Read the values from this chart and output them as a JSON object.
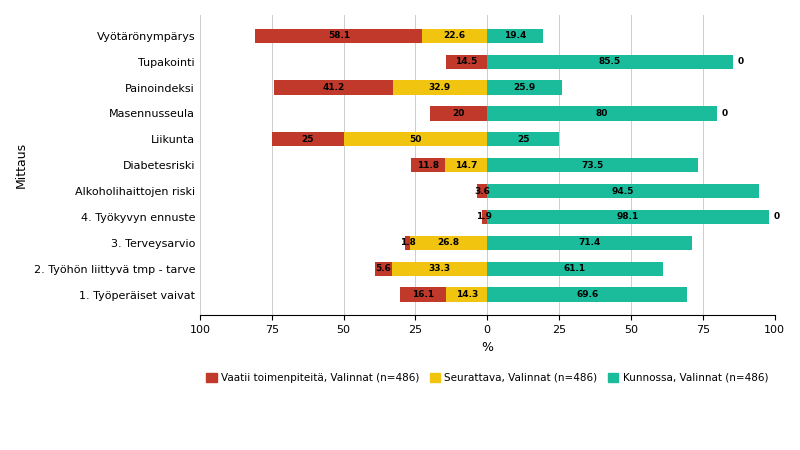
{
  "categories": [
    "1. Työperäiset vaivat",
    "2. Työhön liittyvä tmp - tarve",
    "3. Terveysarvio",
    "4. Työkyvyn ennuste",
    "Alkoholihaittojen riski",
    "Diabetesriski",
    "Liikunta",
    "Masennusseula",
    "Painoindeksi",
    "Tupakointi",
    "Vyötärönympärys"
  ],
  "vaatii": [
    16.1,
    5.6,
    1.8,
    1.9,
    3.6,
    11.8,
    25.0,
    20.0,
    41.2,
    14.5,
    58.1
  ],
  "seurattava": [
    14.3,
    33.3,
    26.8,
    0.0,
    0.0,
    14.7,
    50.0,
    0.0,
    32.9,
    0.0,
    22.6
  ],
  "kunnossa": [
    69.6,
    61.1,
    71.4,
    98.1,
    94.5,
    73.5,
    25.0,
    80.0,
    25.9,
    85.5,
    19.4
  ],
  "vaatii_labels": [
    "16.1",
    "5.6",
    "1.8",
    "1.9",
    "3.6",
    "11.8",
    "25",
    "20",
    "41.2",
    "14.5",
    "58.1"
  ],
  "seurattava_labels": [
    "14.3",
    "33.3",
    "26.8",
    "",
    "",
    "14.7",
    "50",
    "",
    "32.9",
    "",
    "22.6"
  ],
  "kunnossa_labels": [
    "69.6",
    "61.1",
    "71.4",
    "98.1",
    "94.5",
    "73.5",
    "25",
    "80",
    "25.9",
    "85.5",
    "19.4"
  ],
  "extra_right_zero": [
    false,
    false,
    false,
    true,
    false,
    false,
    false,
    true,
    false,
    true,
    false
  ],
  "color_vaatii": "#C0392B",
  "color_seurattava": "#F1C40F",
  "color_kunnossa": "#1ABC9C",
  "xlabel": "%",
  "ylabel": "Mittaus",
  "xlim": [
    -100,
    100
  ],
  "xticks": [
    -100,
    -75,
    -50,
    -25,
    0,
    25,
    50,
    75,
    100
  ],
  "xticklabels": [
    "100",
    "75",
    "50",
    "25",
    "0",
    "25",
    "50",
    "75",
    "100"
  ],
  "legend_vaatii": "Vaatii toimenpiteitä, Valinnat (n=486)",
  "legend_seurattava": "Seurattava, Valinnat (n=486)",
  "legend_kunnossa": "Kunnossa, Valinnat (n=486)",
  "background_color": "#FFFFFF",
  "grid_color": "#CCCCCC"
}
